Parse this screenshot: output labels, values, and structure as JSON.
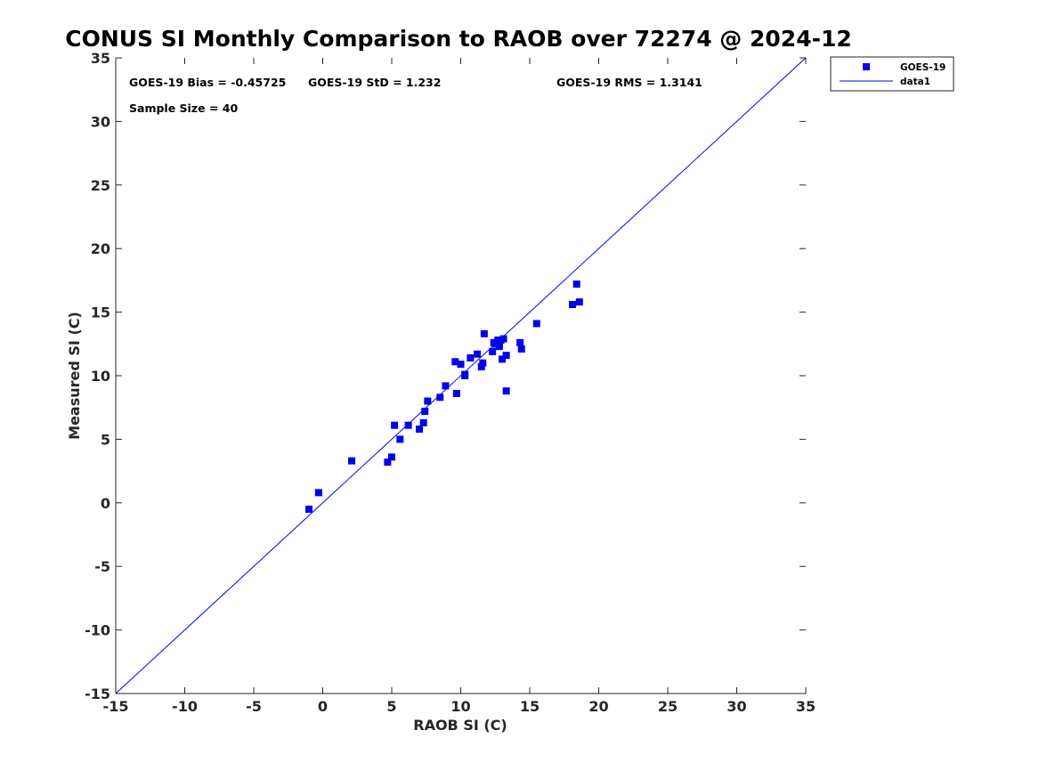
{
  "chart_data": {
    "type": "scatter",
    "title": "CONUS SI Monthly Comparison to RAOB over 72274 @ 2024-12",
    "xlabel": "RAOB SI (C)",
    "ylabel": "Measured SI (C)",
    "xlim": [
      -15,
      35
    ],
    "ylim": [
      -15,
      35
    ],
    "x_ticks": [
      -15,
      -10,
      -5,
      0,
      5,
      10,
      15,
      20,
      25,
      30,
      35
    ],
    "y_ticks": [
      -15,
      -10,
      -5,
      0,
      5,
      10,
      15,
      20,
      25,
      30,
      35
    ],
    "grid": false,
    "legend_position": "top-right",
    "annotations": {
      "bias": "GOES-19 Bias = -0.45725",
      "std": "GOES-19 StD = 1.232",
      "rms": "GOES-19 RMS = 1.3141",
      "sample_size": "Sample Size = 40"
    },
    "series": [
      {
        "name": "GOES-19",
        "kind": "scatter",
        "marker": "square",
        "color": "#0000ee",
        "x": [
          -1.0,
          -0.3,
          2.1,
          4.7,
          5.0,
          5.2,
          5.6,
          6.2,
          7.0,
          7.3,
          7.4,
          7.6,
          8.5,
          8.9,
          9.6,
          9.7,
          10.0,
          10.3,
          10.3,
          10.7,
          11.2,
          11.5,
          11.6,
          11.7,
          12.3,
          12.4,
          12.8,
          12.9,
          13.0,
          13.1,
          13.3,
          13.3,
          14.3,
          14.4,
          15.5,
          18.1,
          18.4,
          18.6,
          12.7,
          12.5
        ],
        "y": [
          -0.5,
          0.8,
          3.3,
          3.2,
          3.6,
          6.1,
          5.0,
          6.1,
          5.8,
          6.3,
          7.2,
          8.0,
          8.3,
          9.2,
          11.1,
          8.6,
          10.9,
          10.0,
          10.1,
          11.4,
          11.7,
          10.7,
          11.0,
          13.3,
          11.9,
          12.6,
          12.3,
          12.8,
          11.3,
          12.9,
          11.6,
          8.8,
          12.6,
          12.1,
          14.1,
          15.6,
          17.2,
          15.8,
          12.8,
          12.5
        ]
      },
      {
        "name": "data1",
        "kind": "line",
        "color": "#0000ee",
        "x": [
          -15,
          35
        ],
        "y": [
          -15,
          35
        ]
      }
    ]
  }
}
